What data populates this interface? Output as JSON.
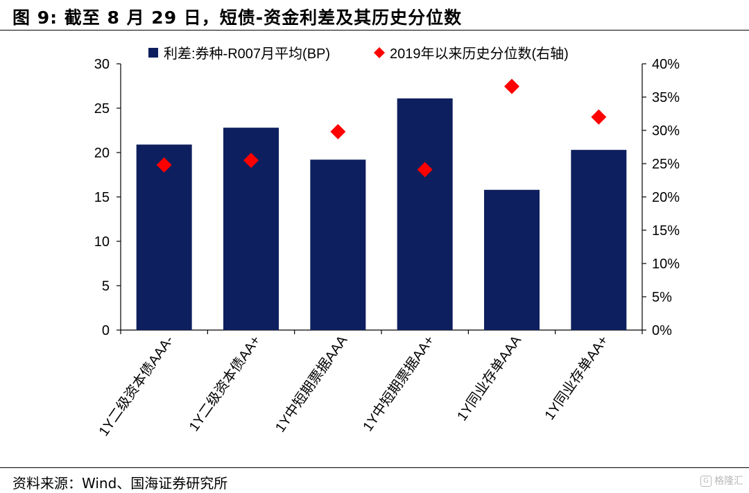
{
  "figure": {
    "title": "图 9:  截至 8 月 29 日，短债-资金利差及其历史分位数",
    "source": "资料来源：Wind、国海证券研究所",
    "watermark": "格隆汇",
    "watermark_icon": "G"
  },
  "chart_data": {
    "type": "bar",
    "categories": [
      "1Y二级资本债AAA-",
      "1Y二级资本债AA+",
      "1Y中短期票据AAA",
      "1Y中短期票据AA+",
      "1Y同业存单AAA",
      "1Y同业存单AA+"
    ],
    "series": [
      {
        "name": "利差:券种-R007月平均(BP)",
        "type": "bar",
        "axis": "left",
        "color": "#0d1f5e",
        "values": [
          20.9,
          22.8,
          19.2,
          26.1,
          15.8,
          20.3
        ]
      },
      {
        "name": "2019年以来历史分位数(右轴)",
        "type": "scatter",
        "marker": "diamond",
        "axis": "right",
        "color": "#ff0000",
        "values": [
          0.248,
          0.255,
          0.298,
          0.241,
          0.366,
          0.32
        ]
      }
    ],
    "left_axis": {
      "ylim": [
        0,
        30
      ],
      "ticks": [
        0,
        5,
        10,
        15,
        20,
        25,
        30
      ],
      "tick_labels": [
        "0",
        "5",
        "10",
        "15",
        "20",
        "25",
        "30"
      ]
    },
    "right_axis": {
      "ylim": [
        0,
        0.4
      ],
      "ticks": [
        0,
        0.05,
        0.1,
        0.15,
        0.2,
        0.25,
        0.3,
        0.35,
        0.4
      ],
      "tick_labels": [
        "0%",
        "5%",
        "10%",
        "15%",
        "20%",
        "25%",
        "30%",
        "35%",
        "40%"
      ]
    },
    "legend": "top",
    "grid": false
  }
}
